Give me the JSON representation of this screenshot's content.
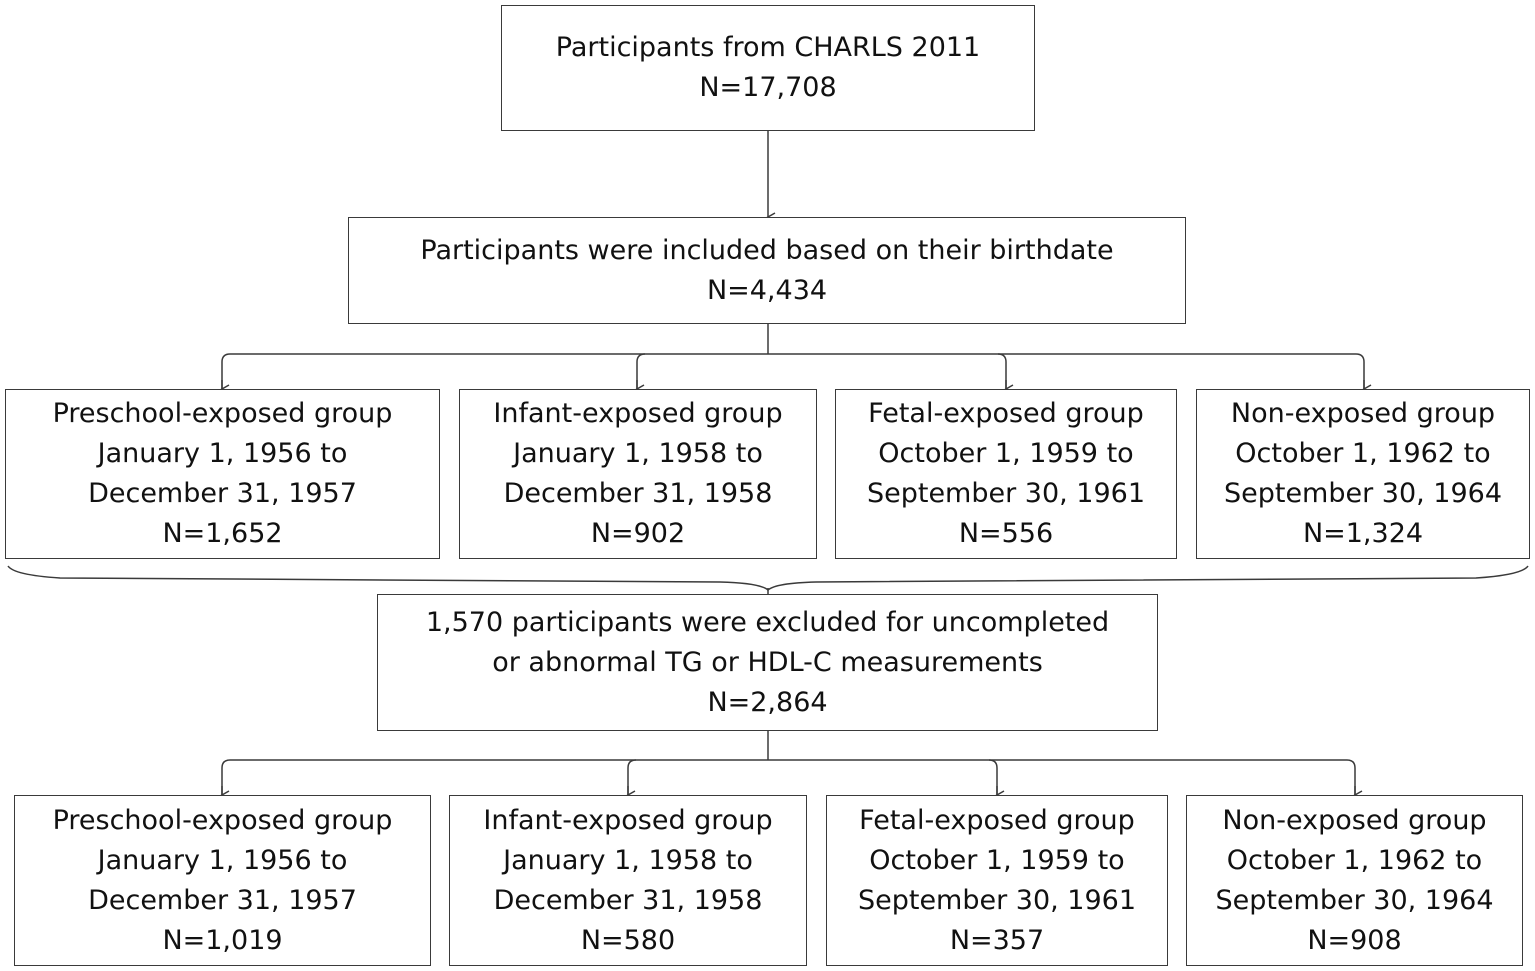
{
  "top": {
    "line1": "Participants from CHARLS 2011",
    "n": "N=17,708"
  },
  "included": {
    "line1": "Participants were included based on their birthdate",
    "n": "N=4,434"
  },
  "groups_before": [
    {
      "name": "Preschool-exposed group",
      "from": "January 1, 1956 to",
      "to": "December 31, 1957",
      "n": "N=1,652"
    },
    {
      "name": "Infant-exposed group",
      "from": "January 1, 1958 to",
      "to": "December 31, 1958",
      "n": "N=902"
    },
    {
      "name": "Fetal-exposed group",
      "from": "October 1, 1959 to",
      "to": "September 30, 1961",
      "n": "N=556"
    },
    {
      "name": "Non-exposed group",
      "from": "October 1, 1962 to",
      "to": "September 30, 1964",
      "n": "N=1,324"
    }
  ],
  "excluded": {
    "line1": "1,570 participants were excluded for uncompleted",
    "line2": "or abnormal TG or HDL-C measurements",
    "n": "N=2,864"
  },
  "groups_after": [
    {
      "name": "Preschool-exposed group",
      "from": "January 1, 1956 to",
      "to": "December 31, 1957",
      "n": "N=1,019"
    },
    {
      "name": "Infant-exposed group",
      "from": "January 1, 1958 to",
      "to": "December 31, 1958",
      "n": "N=580"
    },
    {
      "name": "Fetal-exposed group",
      "from": "October 1, 1959 to",
      "to": "September 30, 1961",
      "n": "N=357"
    },
    {
      "name": "Non-exposed group",
      "from": "October 1, 1962 to",
      "to": "September 30, 1964",
      "n": "N=908"
    }
  ]
}
